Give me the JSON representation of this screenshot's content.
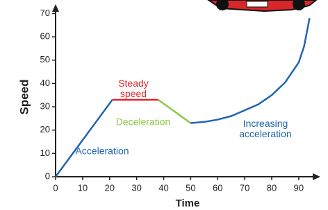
{
  "chart_data": {
    "type": "line",
    "x_label": "Time",
    "y_label": "Speed",
    "xlim": [
      0,
      98
    ],
    "ylim": [
      0,
      74
    ],
    "xticks": [
      0,
      10,
      20,
      30,
      40,
      50,
      60,
      70,
      80,
      90
    ],
    "yticks": [
      0,
      10,
      20,
      30,
      40,
      50,
      60,
      70
    ],
    "series": [
      {
        "name": "Acceleration",
        "color": "#1f64b1",
        "x": [
          0,
          21
        ],
        "values": [
          0,
          33
        ]
      },
      {
        "name": "Steady speed",
        "color": "#e2262c",
        "x": [
          21,
          38
        ],
        "values": [
          33,
          33
        ]
      },
      {
        "name": "Deceleration",
        "color": "#8dc641",
        "x": [
          38,
          50
        ],
        "values": [
          33,
          23
        ]
      },
      {
        "name": "Increasing acceleration",
        "color": "#1f64b1",
        "x": [
          50,
          55,
          60,
          65,
          70,
          75,
          80,
          85,
          90,
          92,
          94
        ],
        "values": [
          23,
          23.5,
          24.5,
          26,
          28.5,
          31,
          35,
          40.5,
          49,
          56,
          68
        ]
      }
    ]
  }
}
